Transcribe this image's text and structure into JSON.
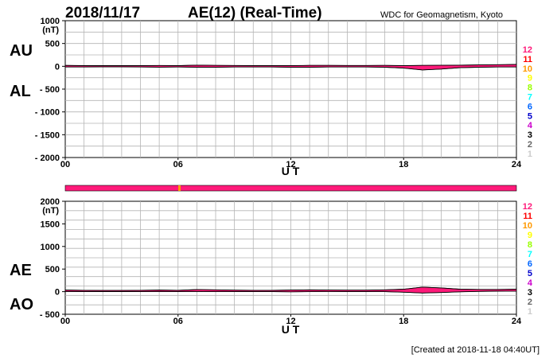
{
  "header": {
    "date": "2018/11/17",
    "title": "AE(12) (Real-Time)",
    "source": "WDC for Geomagnetism, Kyoto"
  },
  "footer": {
    "created": "[Created at 2018-11-18 04:40UT]"
  },
  "colors": {
    "grid": "#b4b4b4",
    "main_fill": "#ff1a7a",
    "outline": "#000000",
    "availability_bar": "#ff1a7a",
    "availability_gap": "#ff9900"
  },
  "station_legend": {
    "labels": [
      "12",
      "11",
      "10",
      "9",
      "8",
      "7",
      "6",
      "5",
      "4",
      "3",
      "2",
      "1"
    ],
    "colors": [
      "#ff1a7a",
      "#ff0000",
      "#ff9900",
      "#ffff00",
      "#99ff00",
      "#00ffff",
      "#0066ff",
      "#0000cc",
      "#cc00cc",
      "#000000",
      "#666666",
      "#cccccc"
    ]
  },
  "chart_data": [
    {
      "type": "area",
      "series_labels": [
        "AU",
        "AL"
      ],
      "ylabel": "(nT)",
      "xlabel": "U T",
      "x_ticks": [
        "00",
        "06",
        "12",
        "18",
        "24"
      ],
      "xlim": [
        0,
        24
      ],
      "ylim": [
        -2000,
        1000
      ],
      "y_ticks": [
        1000,
        500,
        0,
        -500,
        -1000,
        -1500,
        -2000
      ],
      "y_tick_labels": [
        "1000",
        "500",
        "0",
        "- 500",
        "- 1000",
        "- 1500",
        "- 2000"
      ],
      "grid": true,
      "x": [
        0,
        1,
        2,
        3,
        4,
        5,
        6,
        7,
        8,
        9,
        10,
        11,
        12,
        13,
        14,
        15,
        16,
        17,
        18,
        19,
        20,
        21,
        22,
        23,
        24
      ],
      "au": [
        20,
        15,
        15,
        15,
        15,
        18,
        15,
        25,
        20,
        18,
        15,
        15,
        15,
        20,
        20,
        18,
        18,
        20,
        15,
        20,
        22,
        25,
        30,
        35,
        40
      ],
      "al": [
        -15,
        -15,
        -12,
        -12,
        -15,
        -18,
        -15,
        -20,
        -20,
        -15,
        -15,
        -15,
        -20,
        -20,
        -15,
        -15,
        -15,
        -20,
        -40,
        -80,
        -60,
        -30,
        -20,
        -15,
        -15
      ]
    },
    {
      "type": "area",
      "series_labels": [
        "AE",
        "AO"
      ],
      "ylabel": "(nT)",
      "xlabel": "U T",
      "x_ticks": [
        "00",
        "06",
        "12",
        "18",
        "24"
      ],
      "xlim": [
        0,
        24
      ],
      "ylim": [
        -500,
        2000
      ],
      "y_ticks": [
        2000,
        1500,
        1000,
        500,
        0,
        -500
      ],
      "y_tick_labels": [
        "2000",
        "1500",
        "1000",
        "500",
        "0",
        "- 500"
      ],
      "grid": true,
      "x": [
        0,
        1,
        2,
        3,
        4,
        5,
        6,
        7,
        8,
        9,
        10,
        11,
        12,
        13,
        14,
        15,
        16,
        17,
        18,
        19,
        20,
        21,
        22,
        23,
        24
      ],
      "ae": [
        35,
        30,
        27,
        27,
        30,
        36,
        30,
        45,
        40,
        33,
        30,
        30,
        35,
        40,
        35,
        33,
        33,
        40,
        55,
        100,
        82,
        55,
        50,
        50,
        55
      ],
      "ao": [
        3,
        0,
        2,
        2,
        0,
        0,
        0,
        3,
        0,
        2,
        0,
        0,
        -3,
        0,
        3,
        2,
        2,
        0,
        -13,
        -30,
        -19,
        -3,
        5,
        10,
        13
      ]
    }
  ]
}
